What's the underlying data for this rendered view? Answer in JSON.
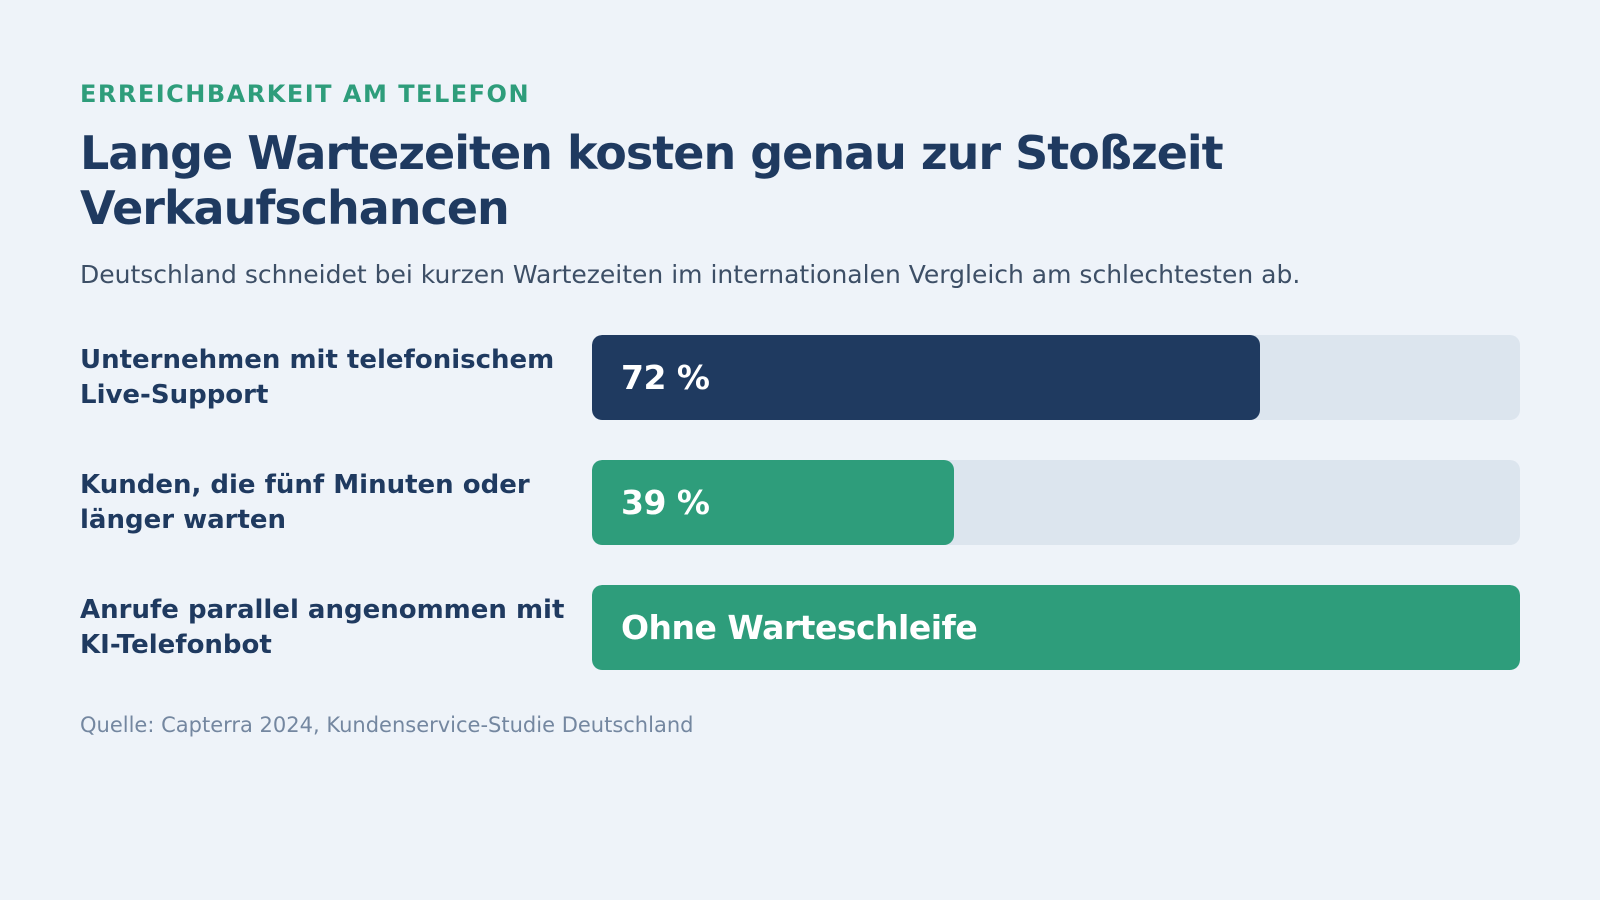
{
  "header": {
    "eyebrow": "ERREICHBARKEIT AM TELEFON",
    "title": "Lange Wartezeiten kosten genau zur Stoßzeit Verkaufschancen",
    "subtitle": "Deutschland schneidet bei kurzen Wartezeiten im internationalen Vergleich am schlechtesten ab."
  },
  "chart_data": {
    "type": "bar",
    "orientation": "horizontal",
    "title": "",
    "xlabel": "",
    "ylabel": "",
    "xlim": [
      0,
      100
    ],
    "grid": false,
    "categories": [
      "Unternehmen mit telefonischem Live-Support",
      "Kunden, die fünf Minuten oder länger warten",
      "Anrufe parallel angenommen mit KI-Telefonbot"
    ],
    "values": [
      72,
      39,
      100
    ],
    "data_labels": [
      "72 %",
      "39 %",
      "Ohne Warteschleife"
    ],
    "bar_colors": [
      "#1f3a60",
      "#2e9d7b",
      "#2e9d7b"
    ]
  },
  "footer": {
    "source": "Quelle: Capterra 2024, Kundenservice-Studie Deutschland"
  },
  "colors": {
    "background": "#eef3f9",
    "navy": "#1f3a60",
    "green": "#2e9d7b",
    "track": "#dce5ee",
    "subtitle": "#3d4f66",
    "source": "#7487a0"
  }
}
